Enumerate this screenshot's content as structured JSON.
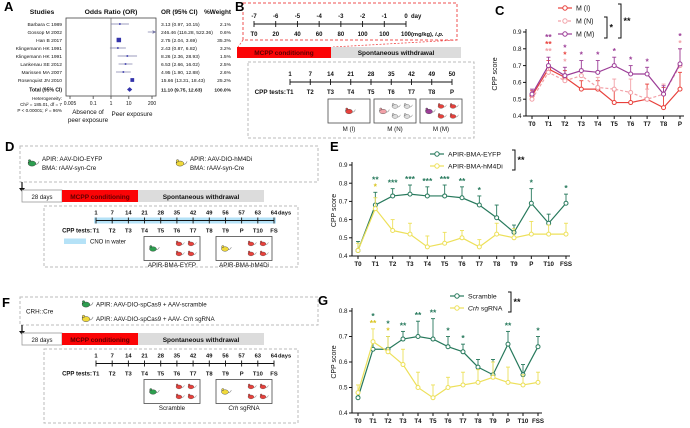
{
  "colors": {
    "red": "#e8413c",
    "pink": "#f2a1a8",
    "purple": "#9c3d97",
    "green": "#2d9e4f",
    "yellow": "#f0d93a",
    "gray_mouse": "#dcdcdc",
    "marker_blue": "#3333aa",
    "ci_line": "#7a7aa8",
    "cno_blue": "#b5e2f7",
    "phase_red": "#fb0406",
    "phase_gray": "#dcdcdc",
    "series_green": "#27795c",
    "series_yellow": "#ede05a"
  },
  "panelA": {
    "label": "A",
    "headers": {
      "studies": "Studies",
      "or": "Odds Ratio (OR)",
      "or_ci": "OR (95% CI)",
      "weight": "%Weight"
    },
    "studies": [
      {
        "name": "Barbara C 1989",
        "or": 3.13,
        "lo": 0.97,
        "hi": 10.15,
        "or_ci": "3.13 (0.97, 10.15)",
        "weight": "2.1%"
      },
      {
        "name": "Gossop M 2002",
        "or": 246.46,
        "lo": 116.28,
        "hi": 522.36,
        "or_ci": "246.46 (116.28, 522.36)",
        "weight": "0.6%"
      },
      {
        "name": "Han B 2017",
        "or": 2.75,
        "lo": 2.04,
        "hi": 3.69,
        "or_ci": "2.75 (2.04, 3.69)",
        "weight": "35.3%"
      },
      {
        "name": "Klingemann HK 1991",
        "or": 2.43,
        "lo": 0.87,
        "hi": 6.82,
        "or_ci": "2.43 (0.87, 6.82)",
        "weight": "3.2%"
      },
      {
        "name": "Klingemann HK 1991",
        "or": 8.26,
        "lo": 2.36,
        "hi": 28.93,
        "or_ci": "8.26 (2.36, 28.93)",
        "weight": "1.5%"
      },
      {
        "name": "Lankenau SE 2012",
        "or": 6.53,
        "lo": 2.66,
        "hi": 16.02,
        "or_ci": "6.53 (2.66, 16.02)",
        "weight": "2.5%"
      },
      {
        "name": "Marissen MA 2007",
        "or": 4.95,
        "lo": 1.9,
        "hi": 12.88,
        "or_ci": "4.95 (1.90, 12.88)",
        "weight": "2.6%"
      },
      {
        "name": "Rosenquist JN 2010",
        "or": 15.66,
        "lo": 13.31,
        "hi": 18.43,
        "or_ci": "15.66 (13.31, 18.43)",
        "weight": "25.2%"
      }
    ],
    "total": {
      "name": "Total (95% CI)",
      "or": 11.1,
      "lo": 9.75,
      "hi": 12.63,
      "or_ci": "11.10 (9.75, 12.63)",
      "weight": "100.0%"
    },
    "heterogeneity": [
      "Heterogeneity:",
      "Chi² = 185.01, df = 7",
      "P < 0.00001; I² = 96%"
    ],
    "axis": {
      "ticks": [
        0.005,
        0.1,
        1,
        10,
        200
      ],
      "tick_labels": [
        "0.005",
        "0.1",
        "1",
        "10",
        "200"
      ]
    },
    "left_arm_label": [
      "Absence of",
      "peer exposure"
    ],
    "right_arm_label": "Peer exposure"
  },
  "panelB": {
    "label": "B",
    "injection": {
      "top_labels": [
        "-7",
        "-6",
        "-5",
        "-4",
        "-3",
        "-2",
        "-1",
        "0"
      ],
      "top_suffix": "day",
      "bottom_labels": [
        "T0",
        "20",
        "40",
        "60",
        "80",
        "100",
        "100",
        "100"
      ],
      "bottom_suffix": "(mg/kg), ",
      "bottom_suffix_italic": "i.p."
    },
    "phase1": "MCPP conditioning",
    "phase2": "Spontaneous withdrawal",
    "cpp": {
      "label": "CPP tests:",
      "days": [
        "1",
        "7",
        "14",
        "21",
        "28",
        "35",
        "42",
        "49",
        "50"
      ],
      "tests": [
        "T1",
        "T2",
        "T3",
        "T4",
        "T5",
        "T6",
        "T7",
        "T8",
        "P"
      ]
    },
    "groups": [
      {
        "label": "M (I)",
        "special": "red",
        "others": null
      },
      {
        "label": "M (N)",
        "special": "pink",
        "others": "gray_mouse"
      },
      {
        "label": "M (M)",
        "special": "purple",
        "others": "red"
      }
    ]
  },
  "panelC": {
    "label": "C"
  },
  "panelD": {
    "label": "D",
    "virus_legend": [
      {
        "mouse": "green",
        "lines": [
          "APIR: AAV-DIO-EYFP",
          "BMA: rAAV-syn-Cre"
        ]
      },
      {
        "mouse": "yellow",
        "lines": [
          "APIR: AAV-DIO-hM4Di",
          "BMA: rAAV-syn-Cre"
        ]
      }
    ],
    "pre_phase": "28 days",
    "phase1": "MCPP conditioning",
    "phase2": "Spontaneous withdrawal",
    "cpp": {
      "label": "CPP tests:",
      "days": [
        "1",
        "7",
        "14",
        "21",
        "28",
        "35",
        "42",
        "49",
        "56",
        "57",
        "63",
        "64"
      ],
      "days_suffix": "days",
      "tests": [
        "T1",
        "T2",
        "T3",
        "T4",
        "T5",
        "T6",
        "T7",
        "T8",
        "T9",
        "P",
        "T10",
        "FS"
      ]
    },
    "cno_label": "CNO in water",
    "groups": [
      {
        "label": "APIR-BMA-EYFP",
        "special": "green",
        "others": "red"
      },
      {
        "label": "APIR-BMA-hM4Di",
        "special": "yellow",
        "others": "red"
      }
    ]
  },
  "panelE": {
    "label": "E"
  },
  "panelF": {
    "label": "F",
    "cre_label": "CRH::Cre",
    "virus_legend": [
      {
        "mouse": "green",
        "segments": [
          [
            "APIR: AAV-DIO-spCas9 + AAV-scramble",
            false
          ]
        ]
      },
      {
        "mouse": "yellow",
        "segments": [
          [
            "APIR: AAV-DIO-spCas9 + AAV- ",
            false
          ],
          [
            "Crh",
            true
          ],
          [
            " sgRNA",
            false
          ]
        ]
      }
    ],
    "pre_phase": "28 days",
    "phase1": "MCPP conditioning",
    "phase2": "Spontaneous withdrawal",
    "cpp": {
      "label": "CPP tests:",
      "days": [
        "1",
        "7",
        "14",
        "21",
        "28",
        "35",
        "42",
        "49",
        "56",
        "57",
        "63",
        "64"
      ],
      "days_suffix": "days",
      "tests": [
        "T1",
        "T2",
        "T3",
        "T4",
        "T5",
        "T6",
        "T7",
        "T8",
        "T9",
        "P",
        "T10",
        "FS"
      ]
    },
    "groups": [
      {
        "label_segments": [
          [
            "Scramble",
            false
          ]
        ],
        "special": "green",
        "others": "red"
      },
      {
        "label_segments": [
          [
            "Crh",
            true
          ],
          [
            " sgRNA",
            false
          ]
        ],
        "special": "yellow",
        "others": "red"
      }
    ]
  },
  "panelG": {
    "label": "G"
  },
  "chart_data": [
    {
      "panel": "C",
      "type": "line",
      "title": "",
      "ylabel": "CPP score",
      "categories": [
        "T0",
        "T1",
        "T2",
        "T3",
        "T4",
        "T5",
        "T6",
        "T7",
        "T8",
        "P"
      ],
      "ylim": [
        0.4,
        0.9
      ],
      "yticks": [
        "0.4",
        "0.5",
        "0.6",
        "0.7",
        "0.8",
        "0.9"
      ],
      "series": [
        {
          "name": "M (I)",
          "color": "#e8413c",
          "dash": false,
          "values": [
            0.52,
            0.68,
            0.63,
            0.56,
            0.56,
            0.48,
            0.48,
            0.5,
            0.45,
            0.56
          ],
          "err": [
            0.03,
            0.05,
            0.04,
            0.05,
            0.05,
            0.07,
            0.06,
            0.09,
            0.12,
            0.1
          ]
        },
        {
          "name": "M (N)",
          "color": "#f2a1a8",
          "dash": true,
          "values": [
            0.5,
            0.66,
            0.61,
            0.64,
            0.57,
            0.56,
            0.54,
            0.5,
            0.53,
            0.7
          ],
          "err": [
            0.03,
            0.04,
            0.04,
            0.04,
            0.06,
            0.06,
            0.08,
            0.06,
            0.06,
            0.1
          ]
        },
        {
          "name": "M (M)",
          "color": "#9c3d97",
          "dash": false,
          "values": [
            0.53,
            0.7,
            0.64,
            0.67,
            0.66,
            0.7,
            0.65,
            0.65,
            0.53,
            0.71
          ],
          "err": [
            0.03,
            0.05,
            0.05,
            0.06,
            0.07,
            0.05,
            0.05,
            0.04,
            0.05,
            0.09
          ]
        }
      ],
      "annotations": [
        {
          "x": "T1",
          "marks": [
            [
              "**",
              "#9c3d97"
            ],
            [
              "**",
              "#e8413c"
            ],
            [
              "**",
              "#f2a1a8"
            ]
          ]
        },
        {
          "x": "T2",
          "marks": [
            [
              "*",
              "#9c3d97"
            ],
            [
              "*",
              "#e8413c"
            ],
            [
              "*",
              "#f2a1a8"
            ]
          ]
        },
        {
          "x": "T3",
          "marks": [
            [
              "*",
              "#9c3d97"
            ]
          ]
        },
        {
          "x": "T4",
          "marks": [
            [
              "*",
              "#9c3d97"
            ]
          ]
        },
        {
          "x": "T5",
          "marks": [
            [
              "*",
              "#9c3d97"
            ]
          ]
        },
        {
          "x": "T6",
          "marks": [
            [
              "*",
              "#9c3d97"
            ]
          ]
        },
        {
          "x": "T7",
          "marks": [
            [
              "*",
              "#9c3d97"
            ]
          ]
        },
        {
          "x": "P",
          "marks": [
            [
              "*",
              "#9c3d97"
            ],
            [
              "*",
              "#f2a1a8"
            ]
          ]
        }
      ],
      "legend": {
        "entries": [
          {
            "label": "M (I)"
          },
          {
            "label": "M (N)"
          },
          {
            "label": "M (M)"
          }
        ],
        "brackets": [
          {
            "from": 1,
            "to": 2,
            "label": "*"
          },
          {
            "from": 0,
            "to": 2,
            "label": "**"
          }
        ]
      }
    },
    {
      "panel": "E",
      "type": "line",
      "title": "",
      "ylabel": "CPP score",
      "categories": [
        "T0",
        "T1",
        "T2",
        "T3",
        "T4",
        "T5",
        "T6",
        "T7",
        "T8",
        "T9",
        "P",
        "T10",
        "FSS"
      ],
      "ylim": [
        0.4,
        0.9
      ],
      "yticks": [
        "0.4",
        "0.5",
        "0.6",
        "0.7",
        "0.8",
        "0.9"
      ],
      "series": [
        {
          "name": "APIR-BMA-EYFP",
          "color": "#27795c",
          "dash": false,
          "values": [
            0.43,
            0.68,
            0.73,
            0.74,
            0.73,
            0.73,
            0.72,
            0.68,
            0.61,
            0.53,
            0.69,
            0.58,
            0.69
          ],
          "err": [
            0.05,
            0.07,
            0.04,
            0.05,
            0.05,
            0.06,
            0.06,
            0.05,
            0.07,
            0.04,
            0.08,
            0.05,
            0.05
          ]
        },
        {
          "name": "APIR-BMA-hM4Di",
          "color": "#ede05a",
          "dash": false,
          "values": [
            0.43,
            0.66,
            0.54,
            0.52,
            0.45,
            0.47,
            0.5,
            0.45,
            0.52,
            0.5,
            0.52,
            0.52,
            0.52
          ],
          "err": [
            0.04,
            0.06,
            0.06,
            0.06,
            0.06,
            0.06,
            0.04,
            0.04,
            0.06,
            0.05,
            0.07,
            0.05,
            0.06
          ]
        }
      ],
      "annotations": [
        {
          "x": "T1",
          "marks": [
            [
              "**",
              "#27795c"
            ],
            [
              "*",
              "#d9c41f"
            ]
          ]
        },
        {
          "x": "T2",
          "marks": [
            [
              "***",
              "#27795c"
            ]
          ]
        },
        {
          "x": "T3",
          "marks": [
            [
              "***",
              "#27795c"
            ]
          ]
        },
        {
          "x": "T4",
          "marks": [
            [
              "***",
              "#27795c"
            ]
          ]
        },
        {
          "x": "T5",
          "marks": [
            [
              "***",
              "#27795c"
            ]
          ]
        },
        {
          "x": "T6",
          "marks": [
            [
              "**",
              "#27795c"
            ]
          ]
        },
        {
          "x": "T7",
          "marks": [
            [
              "*",
              "#27795c"
            ]
          ]
        },
        {
          "x": "P",
          "marks": [
            [
              "*",
              "#27795c"
            ]
          ]
        },
        {
          "x": "FSS",
          "marks": [
            [
              "*",
              "#27795c"
            ]
          ]
        }
      ],
      "legend": {
        "entries": [
          {
            "label": "APIR-BMA-EYFP"
          },
          {
            "label": "APIR-BMA-hM4Di"
          }
        ],
        "brackets": [
          {
            "from": 0,
            "to": 1,
            "label": "**"
          }
        ]
      }
    },
    {
      "panel": "G",
      "type": "line",
      "title": "",
      "ylabel": "CPP score",
      "categories": [
        "T0",
        "T1",
        "T2",
        "T3",
        "T4",
        "T5",
        "T6",
        "T7",
        "T8",
        "T9",
        "P",
        "T10",
        "FSS"
      ],
      "ylim": [
        0.4,
        0.8
      ],
      "yticks": [
        "0.4",
        "0.5",
        "0.6",
        "0.7",
        "0.8"
      ],
      "series": [
        {
          "name": "Scramble",
          "color": "#27795c",
          "dash": false,
          "values": [
            0.46,
            0.65,
            0.65,
            0.69,
            0.7,
            0.69,
            0.66,
            0.64,
            0.58,
            0.55,
            0.67,
            0.55,
            0.66
          ],
          "err": [
            0.02,
            0.03,
            0.05,
            0.03,
            0.06,
            0.08,
            0.04,
            0.03,
            0.03,
            0.06,
            0.05,
            0.04,
            0.04
          ]
        },
        {
          "name": "Crh sgRNA",
          "italic_first": true,
          "color": "#ede05a",
          "dash": false,
          "values": [
            0.48,
            0.68,
            0.64,
            0.59,
            0.5,
            0.46,
            0.5,
            0.51,
            0.52,
            0.54,
            0.52,
            0.51,
            0.52
          ],
          "err": [
            0.03,
            0.05,
            0.06,
            0.06,
            0.06,
            0.05,
            0.04,
            0.05,
            0.05,
            0.06,
            0.06,
            0.04,
            0.04
          ]
        }
      ],
      "annotations": [
        {
          "x": "T1",
          "marks": [
            [
              "*",
              "#27795c"
            ],
            [
              "**",
              "#d9c41f"
            ]
          ]
        },
        {
          "x": "T2",
          "marks": [
            [
              "*",
              "#27795c"
            ],
            [
              "*",
              "#d9c41f"
            ]
          ]
        },
        {
          "x": "T3",
          "marks": [
            [
              "**",
              "#27795c"
            ]
          ]
        },
        {
          "x": "T4",
          "marks": [
            [
              "**",
              "#27795c"
            ]
          ]
        },
        {
          "x": "T5",
          "marks": [
            [
              "**",
              "#27795c"
            ]
          ]
        },
        {
          "x": "T6",
          "marks": [
            [
              "*",
              "#27795c"
            ]
          ]
        },
        {
          "x": "T7",
          "marks": [
            [
              "*",
              "#27795c"
            ]
          ]
        },
        {
          "x": "P",
          "marks": [
            [
              "**",
              "#27795c"
            ]
          ]
        },
        {
          "x": "FSS",
          "marks": [
            [
              "*",
              "#27795c"
            ]
          ]
        }
      ],
      "legend": {
        "entries": [
          {
            "label": "Scramble"
          },
          {
            "label": "Crh sgRNA",
            "italic_first": true
          }
        ],
        "brackets": [
          {
            "from": 0,
            "to": 1,
            "label": "**"
          }
        ]
      }
    }
  ]
}
